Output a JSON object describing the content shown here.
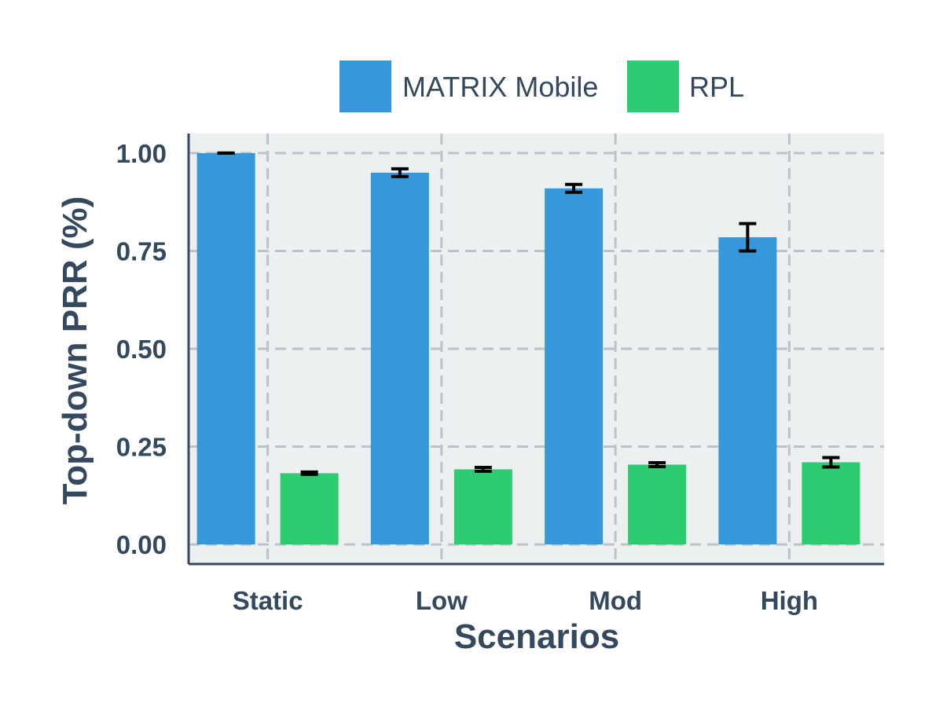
{
  "chart_data": {
    "type": "bar",
    "xlabel": "Scenarios",
    "ylabel": "Top-down PRR (%)",
    "categories": [
      "Static",
      "Low",
      "Mod",
      "High"
    ],
    "ylim": [
      -0.05,
      1.05
    ],
    "yticks": [
      "0.00",
      "0.25",
      "0.50",
      "0.75",
      "1.00"
    ],
    "grid": true,
    "legend_position": "top",
    "series": [
      {
        "name": "MATRIX Mobile",
        "color": "#3498db",
        "values": [
          1.0,
          0.95,
          0.91,
          0.785
        ],
        "errors": [
          0.0,
          0.01,
          0.01,
          0.035
        ]
      },
      {
        "name": "RPL",
        "color": "#2ecc71",
        "values": [
          0.182,
          0.192,
          0.204,
          0.21
        ],
        "errors": [
          0.003,
          0.005,
          0.005,
          0.012
        ]
      }
    ]
  },
  "style": {
    "plot_bg": "#ecf0f1",
    "grid_color": "#bdc3c7",
    "axis_color": "#34495e",
    "error_color": "#000000"
  }
}
